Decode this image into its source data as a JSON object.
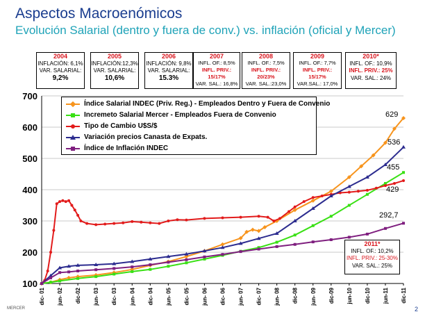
{
  "header": {
    "title": "Aspectos Macroenómicos",
    "subtitle": "Evolución Salarial (dentro y fuera de conv.) vs. inflación (oficial y Mercer)"
  },
  "year_boxes": [
    {
      "year": "2004",
      "line1": "INFLACIÓN: 6,1%",
      "line2": "VAR. SALARIAL:",
      "line3": "9,2%"
    },
    {
      "year": "2005",
      "line1": "INFLACIÓN:12,3%",
      "line2": "VAR. SALARIAL:",
      "line3": "10,6%"
    },
    {
      "year": "2006",
      "line1": "INFLACIÓN: 9,8%",
      "line2": "VAR. SALARIAL:",
      "line3": "15.3%"
    },
    {
      "year": "2007",
      "line1": "INFL. OF.: 8,5%",
      "line2": "INFL. PRIV.:",
      "line2b": "15/17%",
      "line3": "VAR. SAL.: 16,8%"
    },
    {
      "year": "2008",
      "line1": "INFL. OF.: 7,5%",
      "line2": "INFL. PRIV.:",
      "line2b": "20/23%",
      "line3": "VAR. SAL.:23,0%"
    },
    {
      "year": "2009",
      "line1": "INFL. OF.: 7,7%",
      "line2": "INFL. PRIV.:",
      "line2b": "15/17%",
      "line3": "VAR.SAL.: 17,0%"
    },
    {
      "year": "2010*",
      "line1": "INFL. OF.: 10,9%",
      "line2": "INFL. PRIV.: 25%",
      "line3": "VAR. SAL.: 24%"
    }
  ],
  "box_2011": {
    "year": "2011*",
    "line1": "INFL. OF.: 10,2%",
    "line2": "INFL. PRIV.: 25-30%",
    "line3": "VAR. SAL.: 25%"
  },
  "footer": {
    "brand": "MERCER",
    "page": "2"
  },
  "chart_data": {
    "type": "line",
    "title": "Evolución Salarial (dentro y fuera de conv.) vs. inflación (oficial y Mercer)",
    "xlabel": "",
    "ylabel": "",
    "ylim": [
      100,
      700
    ],
    "yticks": [
      100,
      200,
      300,
      400,
      500,
      600,
      700
    ],
    "x_tick_labels": [
      "dic- 01",
      "jun- 02",
      "dic-02",
      "jun- 03",
      "dic- 03",
      "jun- 04",
      "dic- 04",
      "jun- 05",
      "dic- 05",
      "jun- 06",
      "dic- 06",
      "jun- 07",
      "dic- 07",
      "jun- 08",
      "dic-08",
      "jun- 09",
      "dic-09",
      "jun-10",
      "dic-10",
      "jun-11",
      "dic-11"
    ],
    "x_tick_months": [
      0,
      6,
      12,
      18,
      24,
      30,
      36,
      42,
      48,
      54,
      60,
      66,
      72,
      78,
      84,
      90,
      96,
      102,
      108,
      114,
      120
    ],
    "x_range": [
      0,
      120
    ],
    "end_labels": [
      {
        "text": "629",
        "color": "#000000"
      },
      {
        "text": "536",
        "color": "#000000"
      },
      {
        "text": "455",
        "color": "#000000"
      },
      {
        "text": "429",
        "color": "#000000"
      },
      {
        "text": "292,7",
        "color": "#000000"
      }
    ],
    "series": [
      {
        "name": "Índice Salarial INDEC (Priv. Reg.) - Empleados Dentro y Fuera de Convenio",
        "color": "#f7941d",
        "marker": "diamond",
        "points": [
          [
            0,
            100
          ],
          [
            3,
            104
          ],
          [
            6,
            112
          ],
          [
            9,
            118
          ],
          [
            12,
            122
          ],
          [
            18,
            127
          ],
          [
            24,
            135
          ],
          [
            30,
            145
          ],
          [
            36,
            158
          ],
          [
            42,
            170
          ],
          [
            48,
            186
          ],
          [
            54,
            204
          ],
          [
            60,
            225
          ],
          [
            66,
            245
          ],
          [
            68,
            265
          ],
          [
            70,
            272
          ],
          [
            72,
            268
          ],
          [
            74,
            280
          ],
          [
            78,
            300
          ],
          [
            84,
            335
          ],
          [
            90,
            365
          ],
          [
            96,
            395
          ],
          [
            102,
            440
          ],
          [
            106,
            475
          ],
          [
            110,
            510
          ],
          [
            114,
            550
          ],
          [
            117,
            595
          ],
          [
            120,
            629
          ]
        ]
      },
      {
        "name": "Incremeto Salarial Mercer - Empleados Fuera de Convenio",
        "color": "#39e014",
        "marker": "square",
        "points": [
          [
            0,
            100
          ],
          [
            3,
            104
          ],
          [
            6,
            108
          ],
          [
            12,
            116
          ],
          [
            18,
            122
          ],
          [
            24,
            130
          ],
          [
            30,
            138
          ],
          [
            36,
            145
          ],
          [
            42,
            155
          ],
          [
            48,
            166
          ],
          [
            54,
            178
          ],
          [
            60,
            190
          ],
          [
            66,
            203
          ],
          [
            72,
            215
          ],
          [
            78,
            232
          ],
          [
            84,
            255
          ],
          [
            90,
            285
          ],
          [
            96,
            315
          ],
          [
            102,
            350
          ],
          [
            108,
            385
          ],
          [
            114,
            420
          ],
          [
            120,
            455
          ]
        ]
      },
      {
        "name": "Tipo de Cambio U$S/$",
        "color": "#e21b1b",
        "marker": "circle",
        "points": [
          [
            0,
            100
          ],
          [
            1,
            110
          ],
          [
            2,
            140
          ],
          [
            3,
            200
          ],
          [
            4,
            270
          ],
          [
            5,
            355
          ],
          [
            6,
            362
          ],
          [
            7,
            365
          ],
          [
            8,
            362
          ],
          [
            9,
            365
          ],
          [
            10,
            350
          ],
          [
            11,
            335
          ],
          [
            12,
            318
          ],
          [
            13,
            300
          ],
          [
            15,
            292
          ],
          [
            18,
            288
          ],
          [
            21,
            290
          ],
          [
            24,
            292
          ],
          [
            27,
            294
          ],
          [
            30,
            298
          ],
          [
            33,
            296
          ],
          [
            36,
            294
          ],
          [
            39,
            292
          ],
          [
            42,
            300
          ],
          [
            45,
            304
          ],
          [
            48,
            303
          ],
          [
            54,
            308
          ],
          [
            60,
            310
          ],
          [
            66,
            312
          ],
          [
            72,
            315
          ],
          [
            75,
            312
          ],
          [
            77,
            300
          ],
          [
            79,
            308
          ],
          [
            82,
            330
          ],
          [
            84,
            345
          ],
          [
            87,
            362
          ],
          [
            90,
            375
          ],
          [
            93,
            380
          ],
          [
            96,
            385
          ],
          [
            99,
            390
          ],
          [
            102,
            392
          ],
          [
            105,
            395
          ],
          [
            108,
            398
          ],
          [
            111,
            405
          ],
          [
            114,
            413
          ],
          [
            117,
            420
          ],
          [
            120,
            429
          ]
        ]
      },
      {
        "name": "Variación precios Canasta de Expats.",
        "color": "#2c2c8f",
        "marker": "triangle",
        "points": [
          [
            0,
            100
          ],
          [
            3,
            125
          ],
          [
            6,
            150
          ],
          [
            9,
            155
          ],
          [
            12,
            158
          ],
          [
            18,
            160
          ],
          [
            24,
            163
          ],
          [
            30,
            170
          ],
          [
            36,
            178
          ],
          [
            42,
            186
          ],
          [
            48,
            194
          ],
          [
            54,
            204
          ],
          [
            60,
            215
          ],
          [
            66,
            228
          ],
          [
            72,
            244
          ],
          [
            78,
            260
          ],
          [
            84,
            300
          ],
          [
            90,
            340
          ],
          [
            96,
            380
          ],
          [
            102,
            410
          ],
          [
            108,
            440
          ],
          [
            114,
            480
          ],
          [
            120,
            536
          ]
        ]
      },
      {
        "name": "Índice de Inflación INDEC",
        "color": "#7f1f7f",
        "marker": "square",
        "points": [
          [
            0,
            100
          ],
          [
            3,
            118
          ],
          [
            6,
            135
          ],
          [
            9,
            137
          ],
          [
            12,
            140
          ],
          [
            18,
            144
          ],
          [
            24,
            148
          ],
          [
            30,
            153
          ],
          [
            36,
            160
          ],
          [
            42,
            168
          ],
          [
            48,
            176
          ],
          [
            54,
            185
          ],
          [
            60,
            193
          ],
          [
            66,
            202
          ],
          [
            72,
            210
          ],
          [
            78,
            218
          ],
          [
            84,
            225
          ],
          [
            90,
            233
          ],
          [
            96,
            240
          ],
          [
            102,
            248
          ],
          [
            108,
            258
          ],
          [
            114,
            276
          ],
          [
            120,
            292.7
          ]
        ]
      }
    ]
  }
}
